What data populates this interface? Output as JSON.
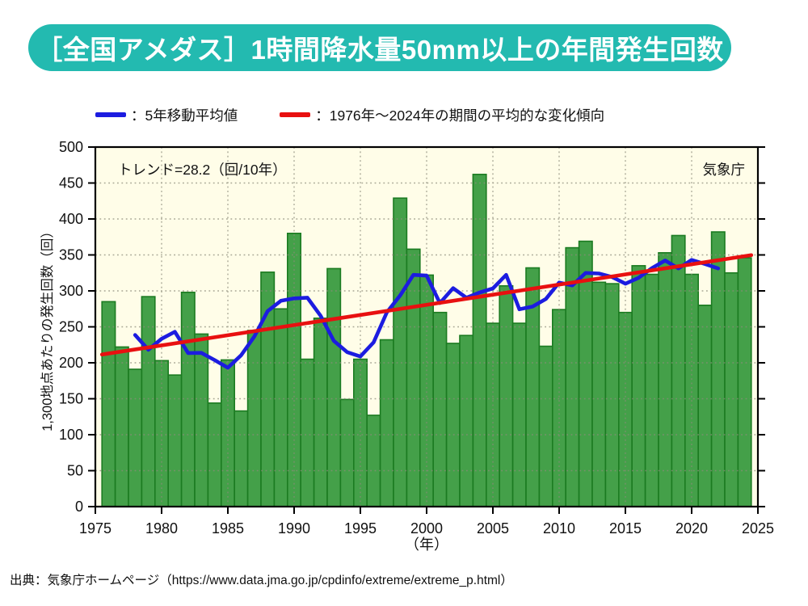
{
  "header": {
    "title": "［全国アメダス］1時間降水量50mm以上の年間発生回数",
    "bg_color": "#23BAB0"
  },
  "legend": {
    "items": [
      {
        "label": "：5年移動平均値",
        "color": "#1C1CE0"
      },
      {
        "label": "：1976年〜2024年の期間の平均的な変化傾向",
        "color": "#E81010"
      }
    ]
  },
  "chart": {
    "trend_label": "トレンド=28.2（回/10年）",
    "agency_label": "気象庁"
  },
  "chart_data": {
    "type": "bar",
    "title": "［全国アメダス］1時間降水量50mm以上の年間発生回数",
    "xlabel": "（年）",
    "ylabel": "1,300地点あたりの発生回数（回）",
    "x": [
      1976,
      1977,
      1978,
      1979,
      1980,
      1981,
      1982,
      1983,
      1984,
      1985,
      1986,
      1987,
      1988,
      1989,
      1990,
      1991,
      1992,
      1993,
      1994,
      1995,
      1996,
      1997,
      1998,
      1999,
      2000,
      2001,
      2002,
      2003,
      2004,
      2005,
      2006,
      2007,
      2008,
      2009,
      2010,
      2011,
      2012,
      2013,
      2014,
      2015,
      2016,
      2017,
      2018,
      2019,
      2020,
      2021,
      2022,
      2023,
      2024
    ],
    "values": [
      285,
      222,
      191,
      292,
      203,
      183,
      298,
      240,
      144,
      204,
      133,
      245,
      326,
      275,
      380,
      205,
      262,
      331,
      149,
      205,
      127,
      232,
      429,
      358,
      322,
      270,
      227,
      238,
      462,
      255,
      307,
      255,
      332,
      223,
      274,
      360,
      369,
      312,
      310,
      270,
      335,
      323,
      353,
      377,
      323,
      280,
      382,
      325,
      346
    ],
    "overlays": {
      "moving_average": {
        "label": "5年移動平均値",
        "window": 5,
        "color": "#1C1CE0"
      },
      "trend": {
        "label": "1976年〜2024年の期間の平均的な変化傾向",
        "slope_per_year": 2.82,
        "slope_per_decade": 28.2,
        "base_year": 2000,
        "base_value": 280.6,
        "x_start": 1975.5,
        "x_end": 2024.5,
        "color": "#E81010"
      }
    },
    "xlim": [
      1975,
      2025
    ],
    "ylim": [
      0,
      500
    ],
    "xticks": [
      1975,
      1980,
      1985,
      1990,
      1995,
      2000,
      2005,
      2010,
      2015,
      2020,
      2025
    ],
    "yticks": [
      0,
      50,
      100,
      150,
      200,
      250,
      300,
      350,
      400,
      450,
      500
    ],
    "grid": {
      "x_step": 5,
      "y_step": 50,
      "style": "dotted",
      "on": true
    },
    "legend_position": "top",
    "colors": {
      "bar": "#44A049",
      "bar_border": "#1B7B21",
      "plot_bg": "#FFFDE8",
      "grid": "#8B8B7A",
      "axis": "#000000"
    }
  },
  "footer": {
    "source": "出典：気象庁ホームページ（https://www.data.jma.go.jp/cpdinfo/extreme/extreme_p.html）"
  }
}
